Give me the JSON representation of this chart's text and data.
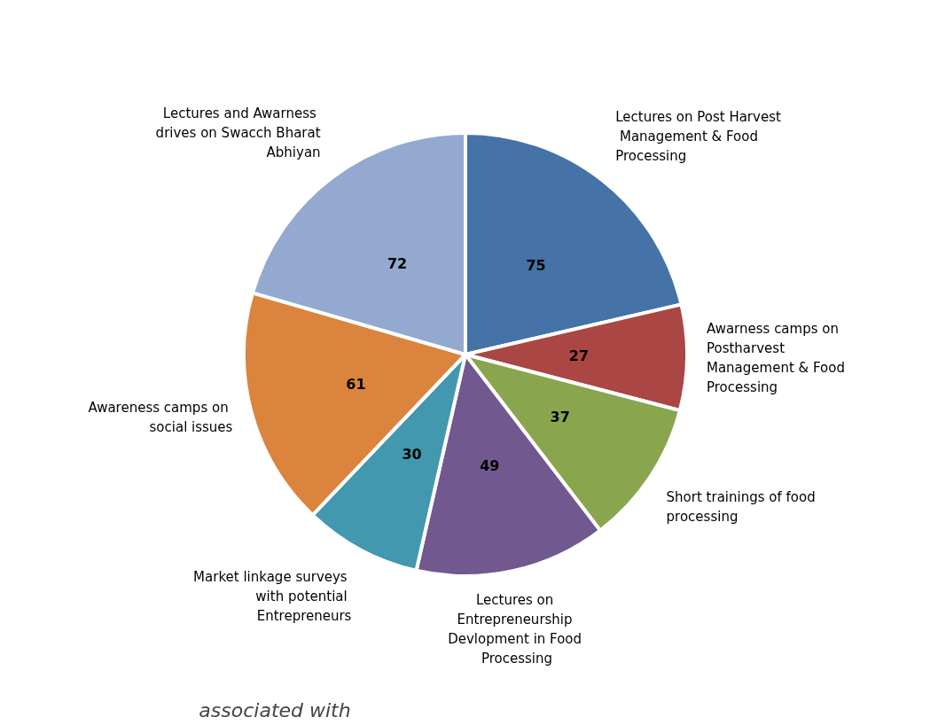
{
  "chart_data": {
    "type": "pie",
    "categories": [
      "Lectures on Post Harvest Management & Food Processing",
      "Awarness camps on Postharvest Management & Food Processing",
      "Short trainings of food processing",
      "Lectures on Entrepreneurship Devlopment in Food Processing",
      "Market linkage surveys with potential Entrepreneurs",
      "Awareness camps on social issues",
      "Lectures and Awarness drives on Swacch Bharat Abhiyan"
    ],
    "values": [
      75,
      27,
      37,
      49,
      30,
      61,
      72
    ],
    "colors": [
      "#4572a7",
      "#aa4643",
      "#89a54e",
      "#71588f",
      "#4198af",
      "#db843d",
      "#93a9cf"
    ],
    "data_labels": true,
    "legend": false,
    "annotations": [
      "associated with"
    ]
  }
}
